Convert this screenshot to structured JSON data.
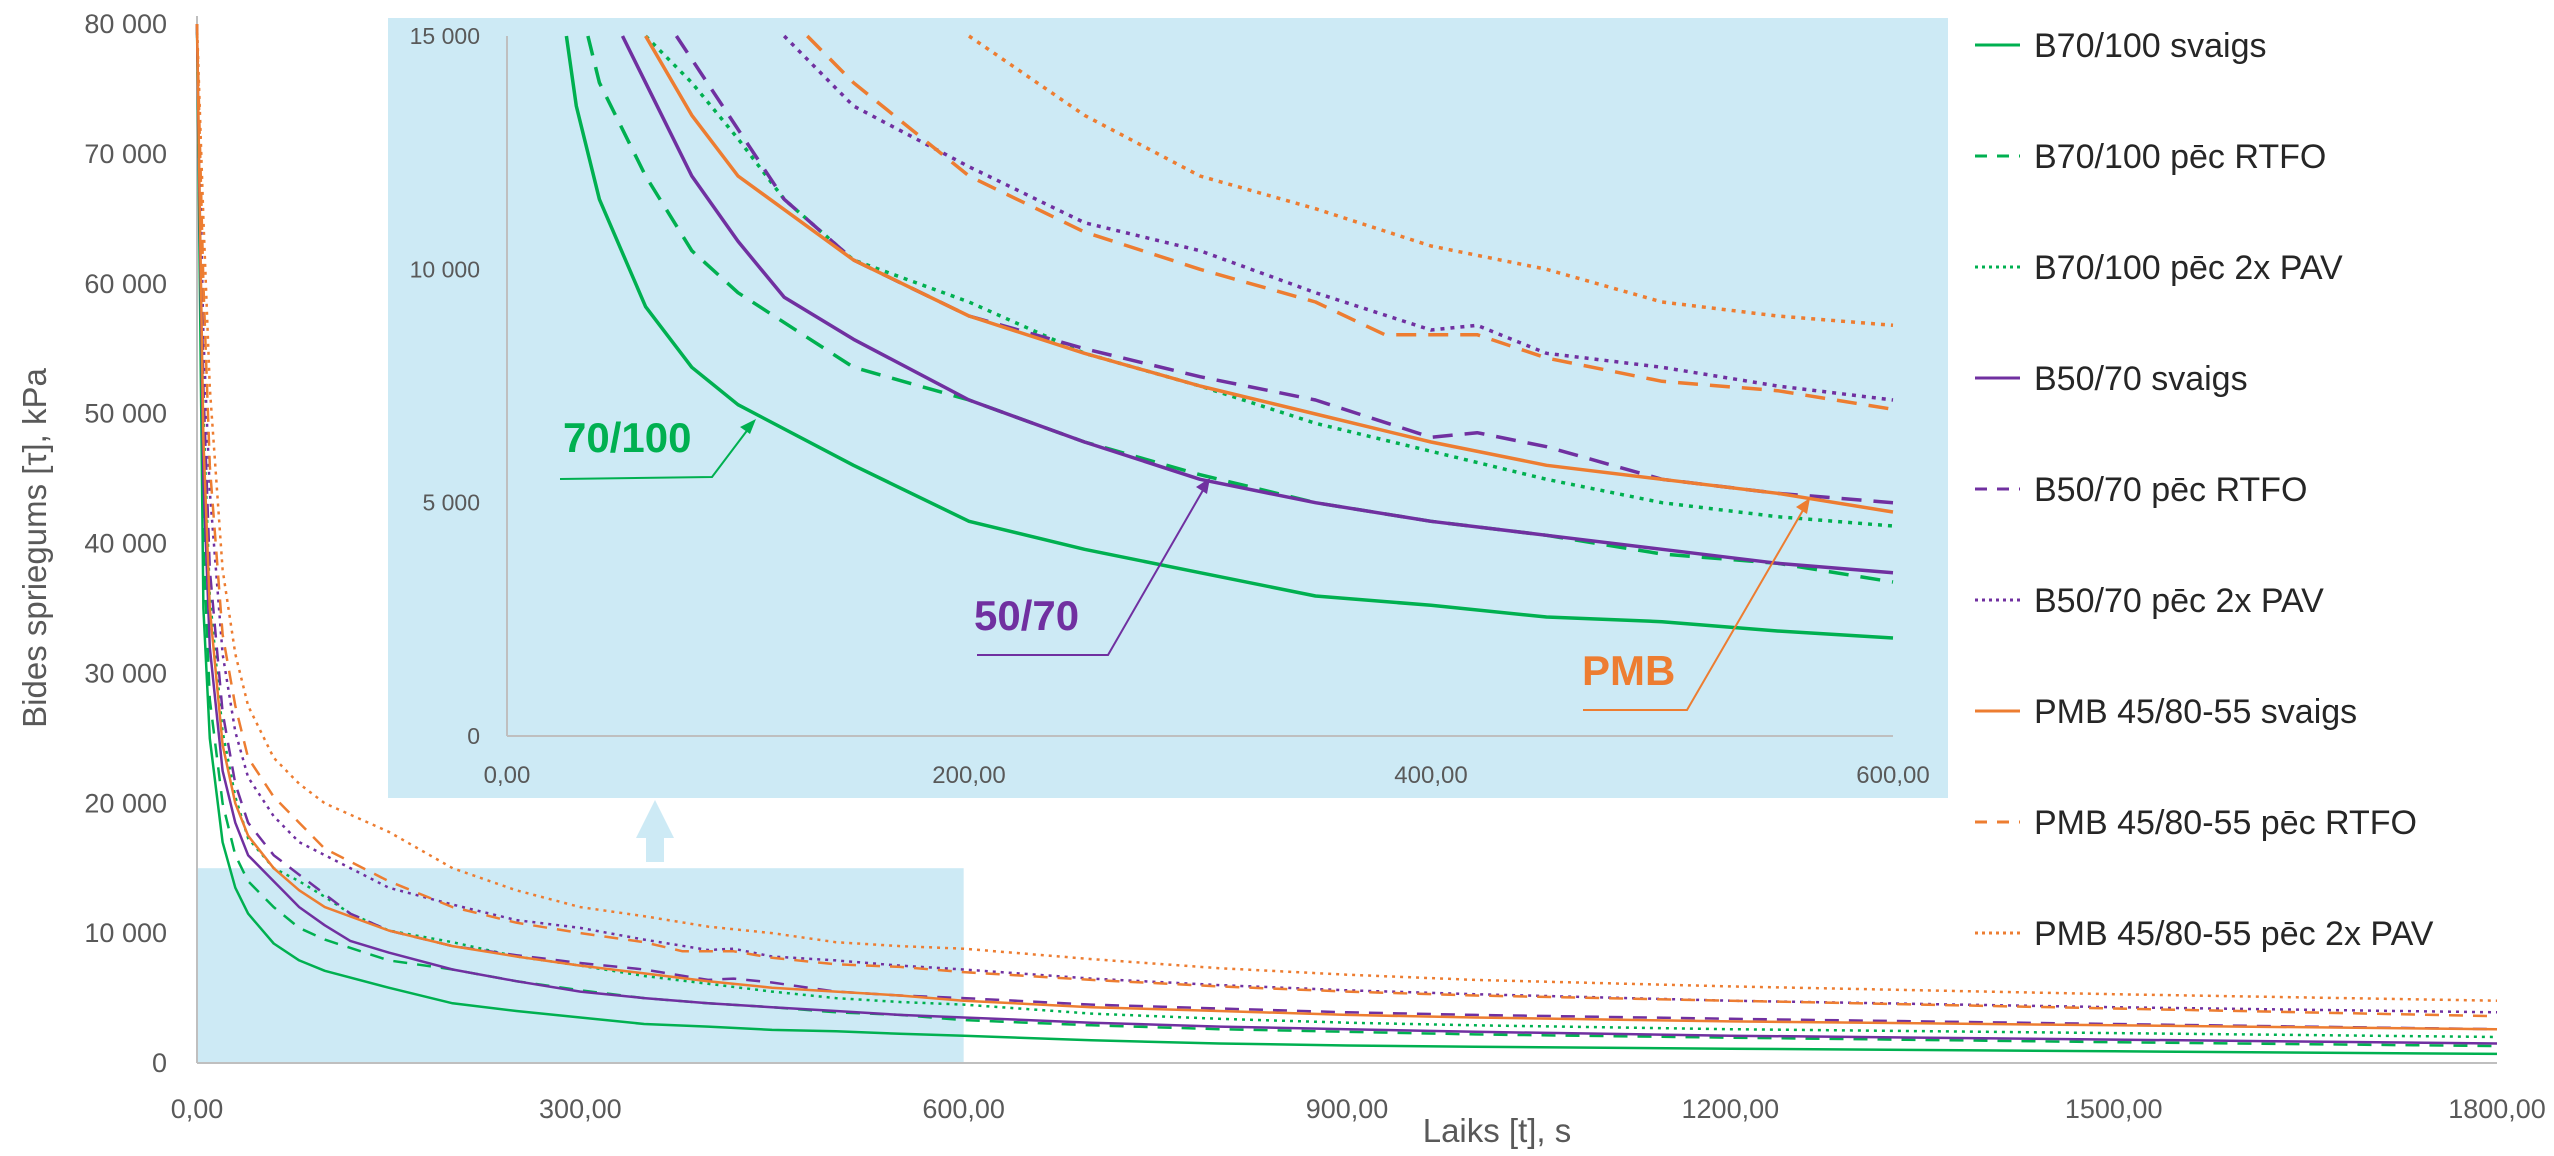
{
  "chart_data": [
    {
      "type": "line",
      "title": "",
      "xlabel": "Laiks [t], s",
      "ylabel": "Bides spriegums [τ], kPa",
      "xlim": [
        0,
        1800
      ],
      "ylim": [
        0,
        80000
      ],
      "x_ticks": [
        "0,00",
        "300,00",
        "600,00",
        "900,00",
        "1200,00",
        "1500,00",
        "1800,00"
      ],
      "y_ticks": [
        "0",
        "10 000",
        "20 000",
        "30 000",
        "40 000",
        "50 000",
        "60 000",
        "70 000",
        "80 000"
      ],
      "grid": false,
      "legend_position": "right",
      "zoom_region": {
        "x": [
          0,
          600
        ],
        "y": [
          0,
          15000
        ]
      },
      "series": [
        {
          "name": "B70/100 svaigs",
          "color": "#00B050",
          "dash": "solid",
          "points": [
            [
              0,
              80000
            ],
            [
              5,
              35000
            ],
            [
              10,
              25000
            ],
            [
              20,
              17000
            ],
            [
              30,
              13500
            ],
            [
              40,
              11500
            ],
            [
              60,
              9200
            ],
            [
              80,
              7900
            ],
            [
              100,
              7100
            ],
            [
              150,
              5800
            ],
            [
              200,
              4600
            ],
            [
              250,
              4000
            ],
            [
              300,
              3500
            ],
            [
              350,
              3000
            ],
            [
              400,
              2800
            ],
            [
              450,
              2550
            ],
            [
              500,
              2450
            ],
            [
              550,
              2250
            ],
            [
              600,
              2100
            ],
            [
              700,
              1750
            ],
            [
              800,
              1500
            ],
            [
              900,
              1350
            ],
            [
              1000,
              1250
            ],
            [
              1200,
              1100
            ],
            [
              1500,
              900
            ],
            [
              1800,
              700
            ]
          ]
        },
        {
          "name": "B70/100 pēc RTFO",
          "color": "#00B050",
          "dash": "dash",
          "points": [
            [
              0,
              80000
            ],
            [
              5,
              40000
            ],
            [
              10,
              28000
            ],
            [
              20,
              20000
            ],
            [
              30,
              16000
            ],
            [
              40,
              14000
            ],
            [
              60,
              12000
            ],
            [
              80,
              10400
            ],
            [
              100,
              9500
            ],
            [
              150,
              7900
            ],
            [
              200,
              7200
            ],
            [
              250,
              6300
            ],
            [
              300,
              5600
            ],
            [
              350,
              5000
            ],
            [
              400,
              4600
            ],
            [
              450,
              4300
            ],
            [
              500,
              3900
            ],
            [
              550,
              3700
            ],
            [
              600,
              3300
            ],
            [
              700,
              2900
            ],
            [
              800,
              2600
            ],
            [
              900,
              2400
            ],
            [
              1000,
              2200
            ],
            [
              1200,
              1950
            ],
            [
              1500,
              1600
            ],
            [
              1800,
              1300
            ]
          ]
        },
        {
          "name": "B70/100 pēc 2x PAV",
          "color": "#00B050",
          "dash": "dot",
          "points": [
            [
              0,
              80000
            ],
            [
              5,
              50000
            ],
            [
              10,
              36000
            ],
            [
              20,
              25500
            ],
            [
              30,
              20500
            ],
            [
              40,
              17300
            ],
            [
              60,
              15000
            ],
            [
              80,
              14000
            ],
            [
              100,
              12800
            ],
            [
              120,
              11500
            ],
            [
              150,
              10200
            ],
            [
              200,
              9300
            ],
            [
              250,
              8200
            ],
            [
              300,
              7500
            ],
            [
              350,
              6700
            ],
            [
              400,
              6100
            ],
            [
              450,
              5500
            ],
            [
              500,
              5000
            ],
            [
              550,
              4700
            ],
            [
              600,
              4500
            ],
            [
              700,
              3800
            ],
            [
              800,
              3400
            ],
            [
              900,
              3100
            ],
            [
              1000,
              2900
            ],
            [
              1200,
              2600
            ],
            [
              1500,
              2300
            ],
            [
              1800,
              2000
            ]
          ]
        },
        {
          "name": "B50/70 svaigs",
          "color": "#7030A0",
          "dash": "solid",
          "points": [
            [
              0,
              80000
            ],
            [
              5,
              45000
            ],
            [
              10,
              32000
            ],
            [
              20,
              22500
            ],
            [
              30,
              18500
            ],
            [
              40,
              16000
            ],
            [
              60,
              14000
            ],
            [
              80,
              12000
            ],
            [
              100,
              10600
            ],
            [
              120,
              9400
            ],
            [
              150,
              8500
            ],
            [
              200,
              7200
            ],
            [
              250,
              6300
            ],
            [
              300,
              5500
            ],
            [
              350,
              5000
            ],
            [
              400,
              4600
            ],
            [
              450,
              4300
            ],
            [
              500,
              4000
            ],
            [
              550,
              3700
            ],
            [
              600,
              3500
            ],
            [
              700,
              3100
            ],
            [
              800,
              2800
            ],
            [
              900,
              2600
            ],
            [
              1000,
              2400
            ],
            [
              1200,
              2100
            ],
            [
              1500,
              1800
            ],
            [
              1800,
              1500
            ]
          ]
        },
        {
          "name": "B50/70 pēc RTFO",
          "color": "#7030A0",
          "dash": "dash",
          "points": [
            [
              0,
              80000
            ],
            [
              5,
              52000
            ],
            [
              10,
              38000
            ],
            [
              20,
              27000
            ],
            [
              30,
              21500
            ],
            [
              40,
              18500
            ],
            [
              60,
              16000
            ],
            [
              80,
              14500
            ],
            [
              100,
              13000
            ],
            [
              120,
              11500
            ],
            [
              150,
              10200
            ],
            [
              200,
              9000
            ],
            [
              250,
              8300
            ],
            [
              300,
              7700
            ],
            [
              350,
              7200
            ],
            [
              400,
              6400
            ],
            [
              420,
              6500
            ],
            [
              450,
              6200
            ],
            [
              500,
              5500
            ],
            [
              550,
              5200
            ],
            [
              600,
              5000
            ],
            [
              700,
              4500
            ],
            [
              800,
              4200
            ],
            [
              900,
              3900
            ],
            [
              1000,
              3700
            ],
            [
              1200,
              3400
            ],
            [
              1500,
              3000
            ],
            [
              1800,
              2600
            ]
          ]
        },
        {
          "name": "B50/70 pēc 2x PAV",
          "color": "#7030A0",
          "dash": "dot",
          "points": [
            [
              0,
              80000
            ],
            [
              5,
              56000
            ],
            [
              10,
              44000
            ],
            [
              20,
              31500
            ],
            [
              30,
              25500
            ],
            [
              40,
              22000
            ],
            [
              60,
              19000
            ],
            [
              80,
              17000
            ],
            [
              100,
              16000
            ],
            [
              150,
              13500
            ],
            [
              200,
              12200
            ],
            [
              250,
              11000
            ],
            [
              300,
              10400
            ],
            [
              350,
              9500
            ],
            [
              400,
              8700
            ],
            [
              420,
              8800
            ],
            [
              450,
              8200
            ],
            [
              500,
              7900
            ],
            [
              550,
              7500
            ],
            [
              600,
              7200
            ],
            [
              700,
              6500
            ],
            [
              800,
              6000
            ],
            [
              900,
              5600
            ],
            [
              1000,
              5300
            ],
            [
              1200,
              4800
            ],
            [
              1500,
              4300
            ],
            [
              1800,
              3900
            ]
          ]
        },
        {
          "name": "PMB 45/80-55 svaigs",
          "color": "#ED7D31",
          "dash": "solid",
          "points": [
            [
              0,
              80000
            ],
            [
              5,
              48000
            ],
            [
              10,
              35000
            ],
            [
              20,
              24500
            ],
            [
              30,
              20000
            ],
            [
              40,
              17500
            ],
            [
              60,
              15000
            ],
            [
              80,
              13300
            ],
            [
              100,
              12000
            ],
            [
              150,
              10200
            ],
            [
              200,
              9000
            ],
            [
              250,
              8200
            ],
            [
              300,
              7500
            ],
            [
              350,
              6900
            ],
            [
              400,
              6300
            ],
            [
              450,
              5800
            ],
            [
              500,
              5500
            ],
            [
              550,
              5200
            ],
            [
              600,
              4800
            ],
            [
              700,
              4300
            ],
            [
              800,
              4000
            ],
            [
              900,
              3700
            ],
            [
              1000,
              3500
            ],
            [
              1200,
              3200
            ],
            [
              1500,
              2900
            ],
            [
              1800,
              2600
            ]
          ]
        },
        {
          "name": "PMB 45/80-55 pēc RTFO",
          "color": "#ED7D31",
          "dash": "dash",
          "points": [
            [
              0,
              80000
            ],
            [
              5,
              60000
            ],
            [
              10,
              46000
            ],
            [
              20,
              33000
            ],
            [
              30,
              27500
            ],
            [
              40,
              23500
            ],
            [
              60,
              20500
            ],
            [
              80,
              18500
            ],
            [
              100,
              16500
            ],
            [
              150,
              14000
            ],
            [
              200,
              12000
            ],
            [
              250,
              10800
            ],
            [
              300,
              10000
            ],
            [
              350,
              9300
            ],
            [
              380,
              8600
            ],
            [
              420,
              8600
            ],
            [
              450,
              8100
            ],
            [
              500,
              7600
            ],
            [
              550,
              7400
            ],
            [
              600,
              7000
            ],
            [
              700,
              6400
            ],
            [
              800,
              5900
            ],
            [
              900,
              5500
            ],
            [
              1000,
              5200
            ],
            [
              1200,
              4800
            ],
            [
              1500,
              4200
            ],
            [
              1800,
              3600
            ]
          ]
        },
        {
          "name": "PMB 45/80-55 pēc 2x PAV",
          "color": "#ED7D31",
          "dash": "dot",
          "points": [
            [
              0,
              80000
            ],
            [
              5,
              65000
            ],
            [
              10,
              52000
            ],
            [
              20,
              38000
            ],
            [
              30,
              31500
            ],
            [
              40,
              27500
            ],
            [
              60,
              23500
            ],
            [
              80,
              21500
            ],
            [
              100,
              20000
            ],
            [
              150,
              17800
            ],
            [
              200,
              15000
            ],
            [
              250,
              13300
            ],
            [
              300,
              12000
            ],
            [
              350,
              11300
            ],
            [
              400,
              10500
            ],
            [
              450,
              10000
            ],
            [
              500,
              9300
            ],
            [
              550,
              9000
            ],
            [
              600,
              8800
            ],
            [
              700,
              8000
            ],
            [
              800,
              7300
            ],
            [
              900,
              6800
            ],
            [
              1000,
              6400
            ],
            [
              1200,
              5900
            ],
            [
              1500,
              5300
            ],
            [
              1800,
              4800
            ]
          ]
        }
      ]
    },
    {
      "type": "line",
      "title": "",
      "xlabel": "",
      "ylabel": "",
      "xlim": [
        0,
        600
      ],
      "ylim": [
        0,
        15000
      ],
      "x_ticks": [
        "0,00",
        "200,00",
        "400,00",
        "600,00"
      ],
      "y_ticks": [
        "0",
        "5 000",
        "10 000",
        "15 000"
      ],
      "grid": false,
      "note": "inset zoom of same series",
      "annotations": [
        {
          "text": "70/100",
          "color": "#00B050"
        },
        {
          "text": "50/70",
          "color": "#7030A0"
        },
        {
          "text": "PMB",
          "color": "#ED7D31"
        }
      ]
    }
  ]
}
